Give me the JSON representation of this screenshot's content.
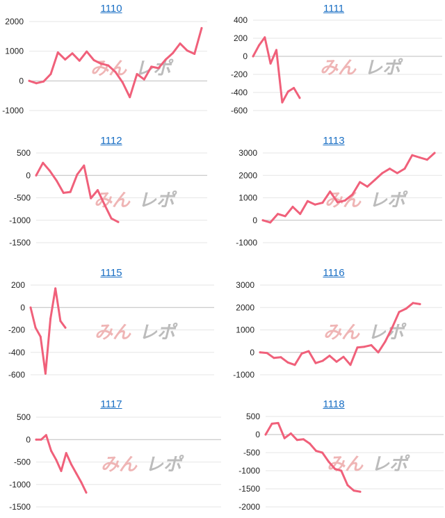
{
  "watermark": {
    "part1": "みん",
    "part2": "レポ",
    "color1": "#efb5b5",
    "color2": "#bcbcbc"
  },
  "series_color": "#f0607a",
  "chart_data": [
    {
      "type": "line",
      "title": "1110",
      "ylim": [
        -1000,
        2000
      ],
      "yticks": [
        2000,
        1000,
        0,
        -1000
      ],
      "values": [
        0,
        -80,
        -20,
        230,
        960,
        720,
        930,
        680,
        990,
        700,
        580,
        520,
        300,
        -50,
        -550,
        230,
        50,
        480,
        430,
        720,
        940,
        1260,
        1020,
        910,
        1780
      ]
    },
    {
      "type": "line",
      "title": "1111",
      "ylim": [
        -600,
        400
      ],
      "yticks": [
        400,
        200,
        0,
        -200,
        -400,
        -600
      ],
      "values": [
        0,
        120,
        210,
        -80,
        70,
        -510,
        -390,
        -350,
        -460
      ]
    },
    {
      "type": "line",
      "title": "1112",
      "ylim": [
        -1500,
        500
      ],
      "yticks": [
        500,
        0,
        -500,
        -1000,
        -1500
      ],
      "values": [
        0,
        280,
        100,
        -120,
        -390,
        -370,
        20,
        220,
        -510,
        -330,
        -650,
        -960,
        -1040
      ]
    },
    {
      "type": "line",
      "title": "1113",
      "ylim": [
        -1000,
        3000
      ],
      "yticks": [
        3000,
        2000,
        1000,
        0,
        -1000
      ],
      "values": [
        0,
        -100,
        280,
        180,
        600,
        280,
        850,
        700,
        780,
        1280,
        800,
        880,
        1150,
        1700,
        1500,
        1800,
        2100,
        2300,
        2100,
        2300,
        2900,
        2800,
        2700,
        3000
      ]
    },
    {
      "type": "line",
      "title": "1115",
      "ylim": [
        -600,
        200
      ],
      "yticks": [
        200,
        0,
        -200,
        -400,
        -600
      ],
      "values": [
        0,
        -180,
        -260,
        -590,
        -100,
        170,
        -120,
        -180
      ]
    },
    {
      "type": "line",
      "title": "1116",
      "ylim": [
        -1000,
        3000
      ],
      "yticks": [
        3000,
        2000,
        1000,
        0,
        -1000
      ],
      "values": [
        0,
        -30,
        -250,
        -220,
        -450,
        -560,
        -50,
        50,
        -480,
        -380,
        -150,
        -420,
        -200,
        -560,
        220,
        250,
        320,
        0,
        480,
        1100,
        1800,
        1950,
        2200,
        2150
      ]
    },
    {
      "type": "line",
      "title": "1117",
      "ylim": [
        -1500,
        500
      ],
      "yticks": [
        500,
        0,
        -500,
        -1000,
        -1500
      ],
      "values": [
        0,
        0,
        100,
        -250,
        -450,
        -700,
        -300,
        -550,
        -750,
        -950,
        -1180
      ]
    },
    {
      "type": "line",
      "title": "1118",
      "ylim": [
        -2000,
        500
      ],
      "yticks": [
        500,
        0,
        -500,
        -1000,
        -1500,
        -2000
      ],
      "values": [
        0,
        300,
        320,
        -100,
        30,
        -150,
        -130,
        -250,
        -450,
        -500,
        -750,
        -950,
        -1000,
        -1400,
        -1550,
        -1580
      ]
    }
  ]
}
